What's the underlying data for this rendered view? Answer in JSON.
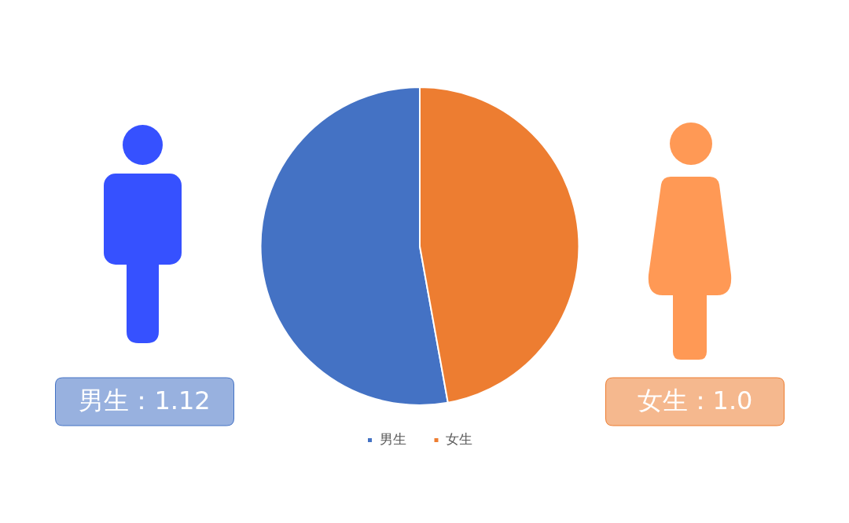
{
  "chart_data": {
    "type": "pie",
    "categories": [
      "男生",
      "女生"
    ],
    "values": [
      1.12,
      1.0
    ],
    "colors": [
      "#4472c4",
      "#ed7d31"
    ],
    "value_labels": [
      "男生：1.12",
      "女生：1.0"
    ],
    "legend": "bottom"
  }
}
